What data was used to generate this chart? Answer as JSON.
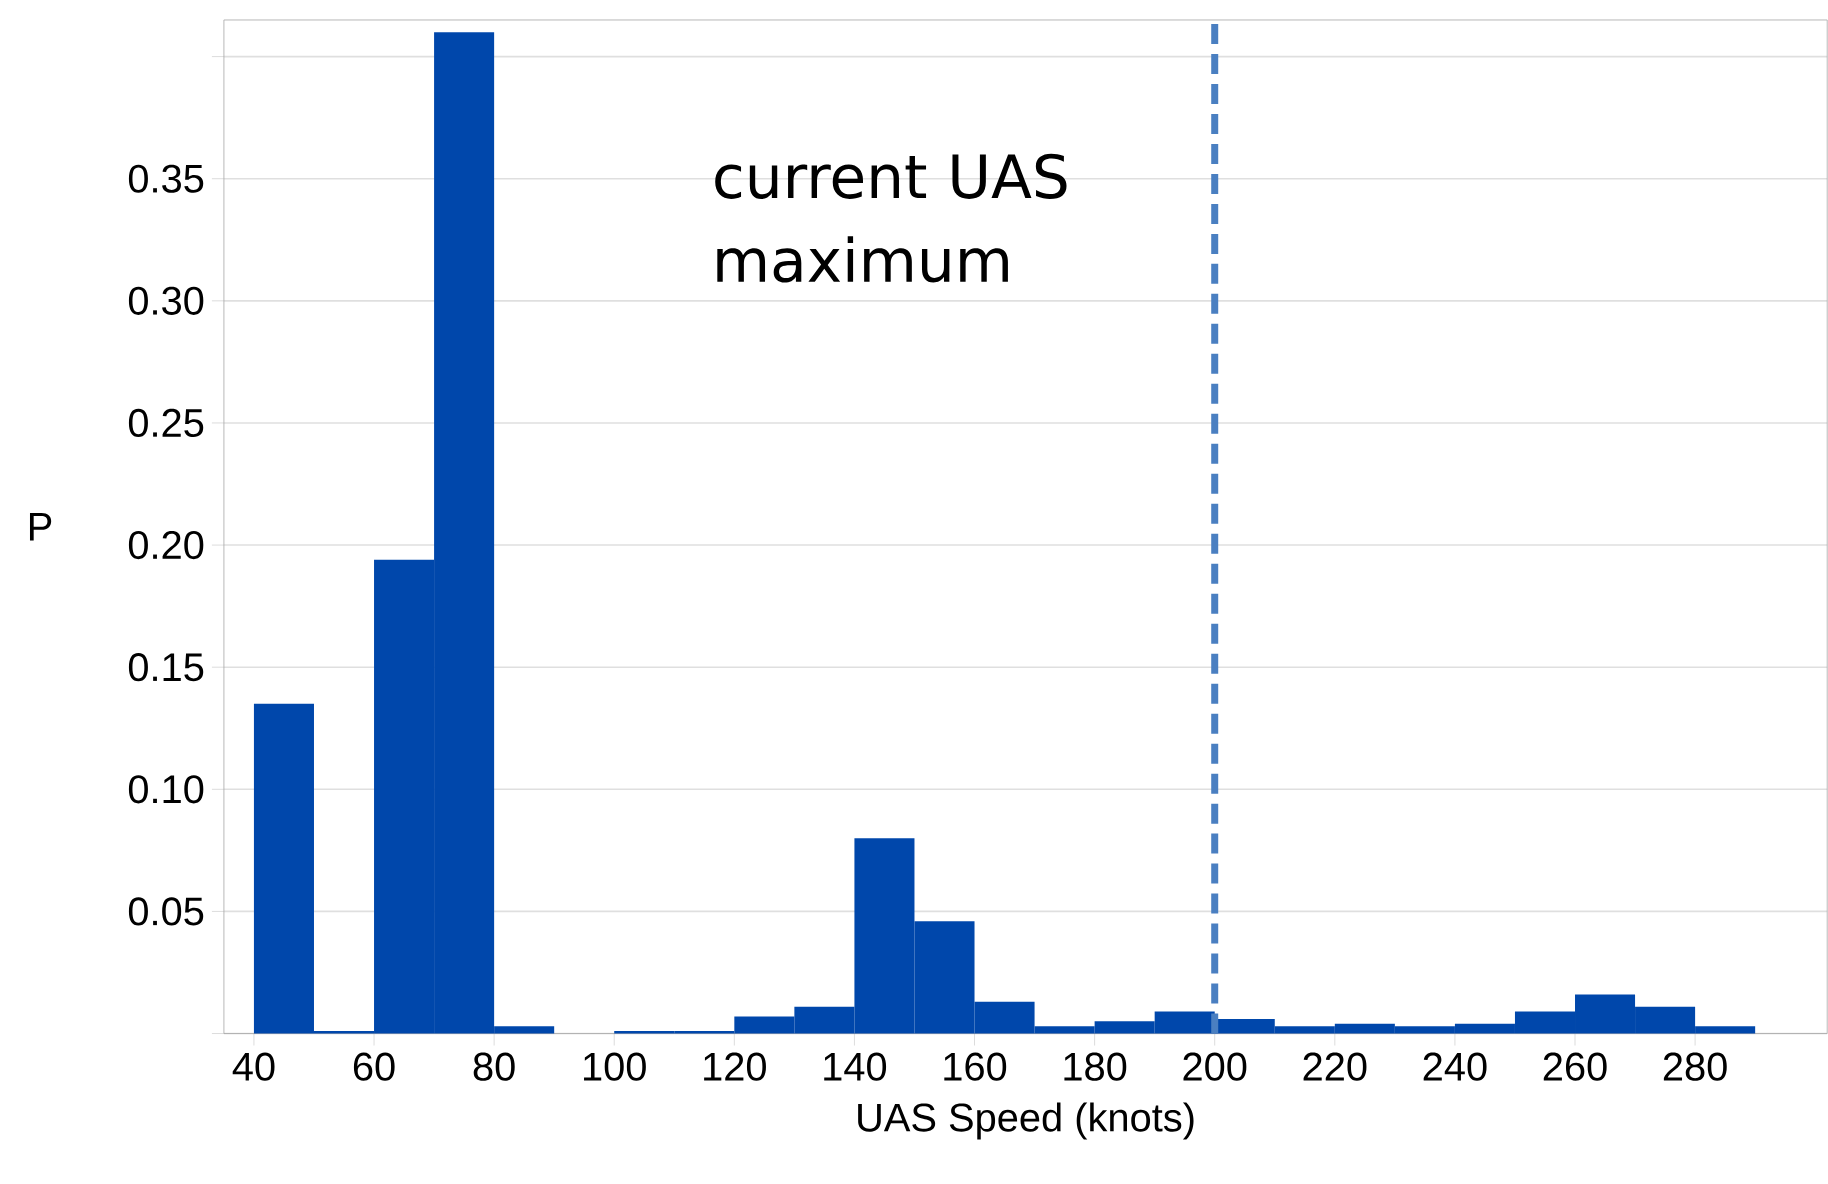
{
  "chart_data": {
    "type": "histogram",
    "xlabel": "UAS Speed (knots)",
    "ylabel": "P",
    "color": "#0047ab",
    "bins": [
      40,
      50,
      60,
      70,
      80,
      90,
      100,
      110,
      120,
      130,
      140,
      150,
      160,
      170,
      180,
      190,
      200,
      210,
      220,
      230,
      240,
      250,
      260,
      270,
      280,
      290
    ],
    "values": [
      0.135,
      0.001,
      0.194,
      0.41,
      0.003,
      0,
      0.001,
      0.001,
      0.007,
      0.011,
      0.08,
      0.046,
      0.013,
      0.003,
      0.005,
      0.009,
      0.006,
      0.003,
      0.004,
      0.003,
      0.004,
      0.009,
      0.016,
      0.011,
      0.003
    ],
    "xlim": [
      35,
      302
    ],
    "ylim": [
      0,
      0.415
    ],
    "xticks": [
      40,
      60,
      80,
      100,
      120,
      140,
      160,
      180,
      200,
      220,
      240,
      260,
      280
    ],
    "yticks": [
      {
        "value": 0,
        "label": null
      },
      0.05,
      {
        "value": 0.1,
        "label": "0.10"
      },
      0.15,
      {
        "value": 0.2,
        "label": "0.20"
      },
      0.25,
      {
        "value": 0.3,
        "label": "0.30"
      },
      0.35,
      {
        "value": 0.4,
        "label": null
      }
    ],
    "grid": "y",
    "ref_lines": [
      {
        "axis": "x",
        "value": 200,
        "label": "current UAS maximum",
        "color": "#4a7fc1",
        "line_style": "dashed"
      }
    ]
  }
}
